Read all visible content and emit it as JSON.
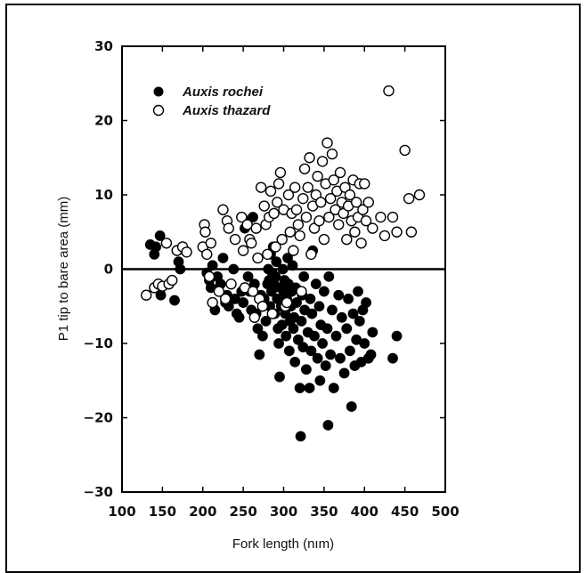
{
  "chart_data": {
    "type": "scatter",
    "xlabel": "Fork length (nım)",
    "ylabel": "P1 tip to bare area (mm)",
    "xlim": [
      100,
      500
    ],
    "ylim": [
      -30,
      30
    ],
    "x_ticks": [
      "100",
      "150",
      "200",
      "250",
      "300",
      "350",
      "400",
      "450",
      "500"
    ],
    "y_ticks": [
      "30",
      "20",
      "10",
      "0",
      "-10",
      "-20",
      "-30"
    ],
    "reference_line_y": 0,
    "legend_position": "top-left",
    "series": [
      {
        "name": "Auxis rochei",
        "marker": "filled-circle",
        "color": "#000000",
        "points": [
          [
            135,
            3.3
          ],
          [
            140,
            2
          ],
          [
            142,
            3
          ],
          [
            147,
            4.5
          ],
          [
            148,
            -3.5
          ],
          [
            165,
            -4.2
          ],
          [
            170,
            1
          ],
          [
            172,
            0
          ],
          [
            175,
            3
          ],
          [
            178,
            2.5
          ],
          [
            205,
            -0.5
          ],
          [
            208,
            -1.5
          ],
          [
            210,
            -2.5
          ],
          [
            212,
            0.5
          ],
          [
            215,
            -5.5
          ],
          [
            218,
            -1
          ],
          [
            220,
            -3
          ],
          [
            222,
            -2
          ],
          [
            225,
            1.5
          ],
          [
            228,
            -4.5
          ],
          [
            230,
            -3.5
          ],
          [
            232,
            -5
          ],
          [
            235,
            -2
          ],
          [
            238,
            0
          ],
          [
            240,
            -4
          ],
          [
            242,
            -6
          ],
          [
            245,
            -6.5
          ],
          [
            248,
            -3
          ],
          [
            250,
            -4.5
          ],
          [
            252,
            5.5
          ],
          [
            255,
            6.5
          ],
          [
            256,
            -1
          ],
          [
            258,
            -3
          ],
          [
            260,
            -5.5
          ],
          [
            262,
            7
          ],
          [
            264,
            -2
          ],
          [
            266,
            -6
          ],
          [
            268,
            -8
          ],
          [
            270,
            -11.5
          ],
          [
            272,
            -3.5
          ],
          [
            274,
            -9
          ],
          [
            276,
            -4
          ],
          [
            278,
            -7
          ],
          [
            280,
            -2
          ],
          [
            281,
            0
          ],
          [
            282,
            -1.5
          ],
          [
            283,
            -5
          ],
          [
            284,
            2
          ],
          [
            285,
            -3
          ],
          [
            286,
            -0.5
          ],
          [
            287,
            3
          ],
          [
            288,
            -2
          ],
          [
            289,
            -6
          ],
          [
            290,
            -1
          ],
          [
            291,
            1
          ],
          [
            292,
            -4
          ],
          [
            293,
            -8
          ],
          [
            294,
            -10
          ],
          [
            295,
            -14.5
          ],
          [
            296,
            -2.5
          ],
          [
            297,
            -5
          ],
          [
            298,
            -7.5
          ],
          [
            299,
            0
          ],
          [
            300,
            -3
          ],
          [
            301,
            -1.5
          ],
          [
            302,
            -6
          ],
          [
            303,
            -9
          ],
          [
            304,
            -4
          ],
          [
            305,
            1.5
          ],
          [
            306,
            -2
          ],
          [
            307,
            -11
          ],
          [
            308,
            -7
          ],
          [
            309,
            -5
          ],
          [
            310,
            -3
          ],
          [
            311,
            0.5
          ],
          [
            312,
            -8
          ],
          [
            313,
            -6.5
          ],
          [
            314,
            -12.5
          ],
          [
            315,
            -2.5
          ],
          [
            316,
            -4.5
          ],
          [
            318,
            -9.5
          ],
          [
            320,
            -16
          ],
          [
            321,
            -22.5
          ],
          [
            322,
            -7
          ],
          [
            323,
            -3.5
          ],
          [
            324,
            -10.5
          ],
          [
            325,
            -1
          ],
          [
            326,
            -5.5
          ],
          [
            328,
            -13.5
          ],
          [
            330,
            -8.5
          ],
          [
            332,
            -16
          ],
          [
            333,
            -4
          ],
          [
            334,
            -11
          ],
          [
            335,
            -6
          ],
          [
            336,
            2.5
          ],
          [
            338,
            -9
          ],
          [
            340,
            -2
          ],
          [
            342,
            -12
          ],
          [
            344,
            -5
          ],
          [
            345,
            -15
          ],
          [
            346,
            -7.5
          ],
          [
            348,
            -10
          ],
          [
            350,
            -3
          ],
          [
            352,
            -13
          ],
          [
            354,
            -8
          ],
          [
            355,
            -21
          ],
          [
            356,
            -1
          ],
          [
            358,
            -11.5
          ],
          [
            360,
            -5.5
          ],
          [
            362,
            -16
          ],
          [
            365,
            -9
          ],
          [
            368,
            -3.5
          ],
          [
            370,
            -12
          ],
          [
            372,
            -6.5
          ],
          [
            375,
            -14
          ],
          [
            378,
            -8
          ],
          [
            380,
            -4
          ],
          [
            382,
            -11
          ],
          [
            384,
            -18.5
          ],
          [
            386,
            -6
          ],
          [
            388,
            -13
          ],
          [
            390,
            -9.5
          ],
          [
            392,
            -3
          ],
          [
            394,
            -7
          ],
          [
            396,
            -12.5
          ],
          [
            398,
            -5.5
          ],
          [
            400,
            -10
          ],
          [
            402,
            -4.5
          ],
          [
            405,
            -12
          ],
          [
            408,
            -11.5
          ],
          [
            410,
            -8.5
          ],
          [
            435,
            -12
          ],
          [
            440,
            -9
          ]
        ]
      },
      {
        "name": "Auxis thazard",
        "marker": "open-circle",
        "color": "#000000",
        "points": [
          [
            130,
            -3.5
          ],
          [
            140,
            -2.5
          ],
          [
            145,
            -2
          ],
          [
            150,
            -2.3
          ],
          [
            155,
            3.5
          ],
          [
            158,
            -2
          ],
          [
            162,
            -1.5
          ],
          [
            168,
            2.5
          ],
          [
            175,
            3
          ],
          [
            180,
            2.3
          ],
          [
            200,
            3
          ],
          [
            202,
            6
          ],
          [
            203,
            5
          ],
          [
            205,
            2
          ],
          [
            208,
            -1
          ],
          [
            210,
            3.5
          ],
          [
            212,
            -4.5
          ],
          [
            220,
            -3
          ],
          [
            225,
            8
          ],
          [
            228,
            -4
          ],
          [
            230,
            6.5
          ],
          [
            232,
            5.5
          ],
          [
            235,
            -2
          ],
          [
            240,
            4
          ],
          [
            248,
            7
          ],
          [
            250,
            2.5
          ],
          [
            252,
            -2.5
          ],
          [
            255,
            6
          ],
          [
            258,
            4
          ],
          [
            260,
            3.5
          ],
          [
            262,
            -3
          ],
          [
            264,
            -6.5
          ],
          [
            266,
            5.5
          ],
          [
            268,
            1.5
          ],
          [
            270,
            -4
          ],
          [
            272,
            11
          ],
          [
            274,
            -5
          ],
          [
            276,
            8.5
          ],
          [
            278,
            6
          ],
          [
            280,
            2
          ],
          [
            282,
            7
          ],
          [
            284,
            10.5
          ],
          [
            286,
            -6
          ],
          [
            288,
            7.5
          ],
          [
            290,
            3
          ],
          [
            292,
            9
          ],
          [
            294,
            11.5
          ],
          [
            296,
            13
          ],
          [
            298,
            4
          ],
          [
            300,
            8
          ],
          [
            302,
            -5
          ],
          [
            304,
            -4.5
          ],
          [
            306,
            10
          ],
          [
            308,
            5
          ],
          [
            310,
            7.5
          ],
          [
            312,
            2.5
          ],
          [
            314,
            11
          ],
          [
            316,
            8
          ],
          [
            318,
            6
          ],
          [
            320,
            4.5
          ],
          [
            322,
            -3
          ],
          [
            324,
            9.5
          ],
          [
            326,
            13.5
          ],
          [
            328,
            7
          ],
          [
            330,
            11
          ],
          [
            332,
            15
          ],
          [
            334,
            2
          ],
          [
            336,
            8.5
          ],
          [
            338,
            5.5
          ],
          [
            340,
            10
          ],
          [
            342,
            12.5
          ],
          [
            344,
            6.5
          ],
          [
            346,
            9
          ],
          [
            348,
            14.5
          ],
          [
            350,
            4
          ],
          [
            352,
            11.5
          ],
          [
            354,
            17
          ],
          [
            356,
            7
          ],
          [
            358,
            9.5
          ],
          [
            360,
            15.5
          ],
          [
            362,
            12
          ],
          [
            364,
            8
          ],
          [
            366,
            10.5
          ],
          [
            368,
            6
          ],
          [
            370,
            13
          ],
          [
            372,
            9
          ],
          [
            374,
            7.5
          ],
          [
            376,
            11
          ],
          [
            378,
            4
          ],
          [
            380,
            8.5
          ],
          [
            382,
            10
          ],
          [
            384,
            6.5
          ],
          [
            386,
            12
          ],
          [
            388,
            5
          ],
          [
            390,
            9
          ],
          [
            392,
            7
          ],
          [
            394,
            11.5
          ],
          [
            396,
            3.5
          ],
          [
            398,
            8
          ],
          [
            400,
            11.5
          ],
          [
            402,
            6.5
          ],
          [
            405,
            9
          ],
          [
            410,
            5.5
          ],
          [
            420,
            7
          ],
          [
            425,
            4.5
          ],
          [
            430,
            24
          ],
          [
            435,
            7
          ],
          [
            440,
            5
          ],
          [
            450,
            16
          ],
          [
            455,
            9.5
          ],
          [
            458,
            5
          ],
          [
            468,
            10
          ]
        ]
      }
    ]
  }
}
